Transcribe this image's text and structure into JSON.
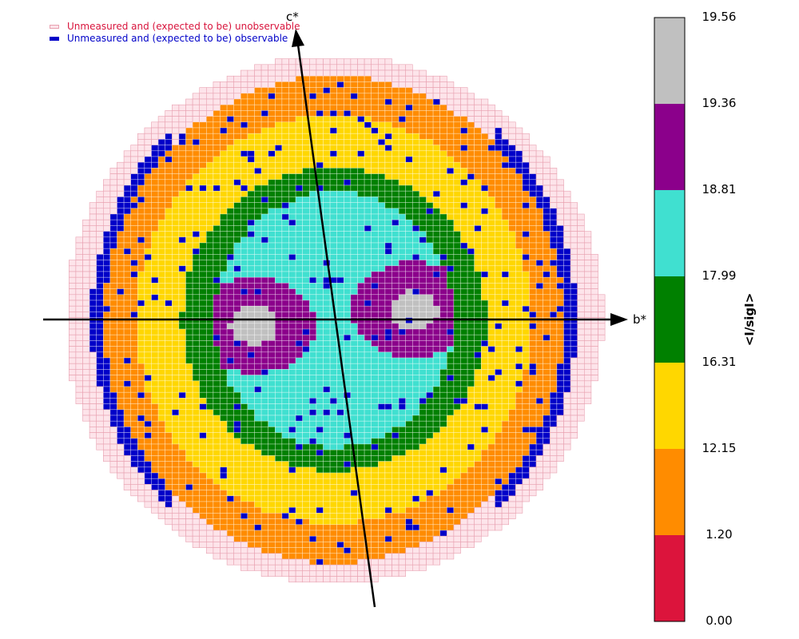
{
  "chart_data": {
    "type": "heatmap",
    "axes": {
      "horizontal_label": "b*",
      "vertical_label": "c*"
    },
    "legend": [
      {
        "label": "Unmeasured and (expected to be) unobservable",
        "text_color": "#d8143c",
        "fill": "#fde4ea",
        "stroke": "#e8a0b0"
      },
      {
        "label": "Unmeasured and (expected to be) observable",
        "text_color": "#0000c8",
        "fill": "#0000c8",
        "stroke": "#0000c8"
      }
    ],
    "colorbar": {
      "title": "<I/sigI>",
      "tick_labels": [
        "19.56",
        "19.36",
        "18.81",
        "17.99",
        "16.31",
        "12.15",
        "1.20",
        "0.00"
      ],
      "bins": [
        {
          "from": 0.0,
          "to": 1.2,
          "color": "#dc143c"
        },
        {
          "from": 1.2,
          "to": 12.15,
          "color": "#ff8c00"
        },
        {
          "from": 12.15,
          "to": 16.31,
          "color": "#ffd700"
        },
        {
          "from": 16.31,
          "to": 17.99,
          "color": "#008000"
        },
        {
          "from": 17.99,
          "to": 18.81,
          "color": "#40e0d0"
        },
        {
          "from": 18.81,
          "to": 19.36,
          "color": "#8b008b"
        },
        {
          "from": 19.36,
          "to": 19.56,
          "color": "#c0c0c0"
        }
      ]
    },
    "zones": [
      {
        "region": "outermost shell",
        "mean_I_over_sigI": "unmeasured, unobservable"
      },
      {
        "region": "outer shell",
        "mean_I_over_sigI": "1.20–12.15"
      },
      {
        "region": "middle shell",
        "mean_I_over_sigI": "12.15–16.31"
      },
      {
        "region": "inner ring",
        "mean_I_over_sigI": "16.31–17.99"
      },
      {
        "region": "core",
        "mean_I_over_sigI": "17.99–18.81"
      },
      {
        "region": "two lobes",
        "mean_I_over_sigI": "18.81–19.36"
      },
      {
        "region": "lobe centers",
        "mean_I_over_sigI": "19.36–19.56"
      }
    ]
  }
}
